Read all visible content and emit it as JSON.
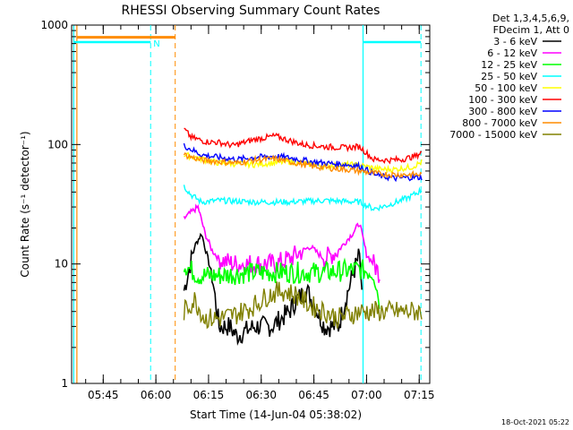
{
  "chart_data": {
    "type": "line",
    "title": "RHESSI Observing Summary Count Rates",
    "xlabel": "Start Time (14-Jun-04 05:38:02)",
    "ylabel": "Count Rate (s⁻¹ detector⁻¹)",
    "yscale": "log",
    "ylim": [
      1,
      1000
    ],
    "xlim_minutes": [
      -2,
      100
    ],
    "y_ticks": [
      {
        "value": 1,
        "label": "1"
      },
      {
        "value": 10,
        "label": "10"
      },
      {
        "value": 100,
        "label": "100"
      },
      {
        "value": 1000,
        "label": "1000"
      }
    ],
    "x_ticks": [
      {
        "minutes": 7,
        "label": "05:45"
      },
      {
        "minutes": 22,
        "label": "06:00"
      },
      {
        "minutes": 37,
        "label": "06:15"
      },
      {
        "minutes": 52,
        "label": "06:30"
      },
      {
        "minutes": 67,
        "label": "06:45"
      },
      {
        "minutes": 82,
        "label": "07:00"
      },
      {
        "minutes": 97,
        "label": "07:15"
      }
    ],
    "legend_header": [
      "Det 1,3,4,5,6,9,",
      "FDecim 1, Att 0"
    ],
    "series": [
      {
        "name": "3 - 6 keV",
        "color": "#000000",
        "x": [
          30,
          33,
          35,
          38,
          40,
          43,
          45,
          50,
          55,
          60,
          62,
          65,
          68,
          70,
          74,
          76,
          78,
          80,
          81
        ],
        "values": [
          6,
          14,
          18,
          8,
          3,
          3,
          2.5,
          3,
          3,
          4,
          5,
          6,
          4,
          3,
          3,
          5,
          8,
          12,
          4
        ]
      },
      {
        "name": "6 - 12 keV",
        "color": "#ff00ff",
        "x": [
          30,
          32,
          34,
          36,
          38,
          40,
          44,
          50,
          56,
          60,
          64,
          66,
          70,
          74,
          78,
          80,
          82,
          84,
          86
        ],
        "values": [
          24,
          27,
          30,
          18,
          13,
          11,
          10,
          10,
          10,
          11,
          13,
          14,
          11,
          13,
          18,
          22,
          12,
          10,
          8
        ]
      },
      {
        "name": "12 - 25 keV",
        "color": "#00ff00",
        "x": [
          30,
          34,
          40,
          50,
          60,
          70,
          80,
          84,
          85,
          86
        ],
        "values": [
          10,
          8,
          8,
          8.5,
          8.5,
          8.5,
          9,
          8.5,
          6,
          4.5
        ]
      },
      {
        "name": "25 - 50 keV",
        "color": "#00ffff",
        "x": [
          30,
          32,
          35,
          40,
          50,
          60,
          70,
          80,
          84,
          88,
          94,
          98
        ],
        "values": [
          45,
          38,
          33,
          34,
          33,
          33,
          34,
          33,
          29,
          31,
          36,
          42
        ]
      },
      {
        "name": "50 - 100 keV",
        "color": "#ffff00",
        "x": [
          30,
          40,
          50,
          60,
          70,
          76,
          80,
          86,
          90,
          95,
          98
        ],
        "values": [
          82,
          70,
          68,
          72,
          66,
          68,
          67,
          62,
          62,
          65,
          72
        ]
      },
      {
        "name": "100 - 300 keV",
        "color": "#ff0000",
        "x": [
          30,
          32,
          36,
          40,
          44,
          50,
          56,
          60,
          64,
          70,
          76,
          80,
          84,
          88,
          92,
          96,
          98
        ],
        "values": [
          135,
          115,
          106,
          104,
          98,
          110,
          118,
          108,
          100,
          96,
          94,
          96,
          75,
          74,
          75,
          80,
          88
        ]
      },
      {
        "name": "300 - 800 keV",
        "color": "#0000ff",
        "x": [
          30,
          35,
          40,
          45,
          50,
          56,
          62,
          66,
          70,
          76,
          80,
          85,
          90,
          94,
          98
        ],
        "values": [
          98,
          82,
          78,
          75,
          78,
          80,
          76,
          72,
          70,
          68,
          66,
          55,
          52,
          53,
          53
        ]
      },
      {
        "name": "800 - 7000 keV",
        "color": "#ff8c00",
        "x": [
          30,
          35,
          40,
          45,
          50,
          56,
          62,
          66,
          70,
          76,
          80,
          85,
          90,
          94,
          98
        ],
        "values": [
          82,
          74,
          72,
          70,
          74,
          76,
          70,
          66,
          64,
          62,
          60,
          57,
          56,
          56,
          56
        ]
      },
      {
        "name": "7000 - 15000 keV",
        "color": "#808000",
        "x": [
          30,
          33,
          36,
          40,
          45,
          50,
          54,
          58,
          62,
          66,
          70,
          74,
          80,
          86,
          90,
          96,
          98
        ],
        "values": [
          4,
          5,
          3.5,
          3.5,
          3.8,
          4.5,
          5.5,
          6,
          5.5,
          4.5,
          4,
          3.5,
          4,
          4,
          4,
          4,
          4
        ]
      }
    ],
    "annotations": {
      "saa_flag_label": "N",
      "footer_date": "18-Oct-2021 05:22"
    }
  }
}
